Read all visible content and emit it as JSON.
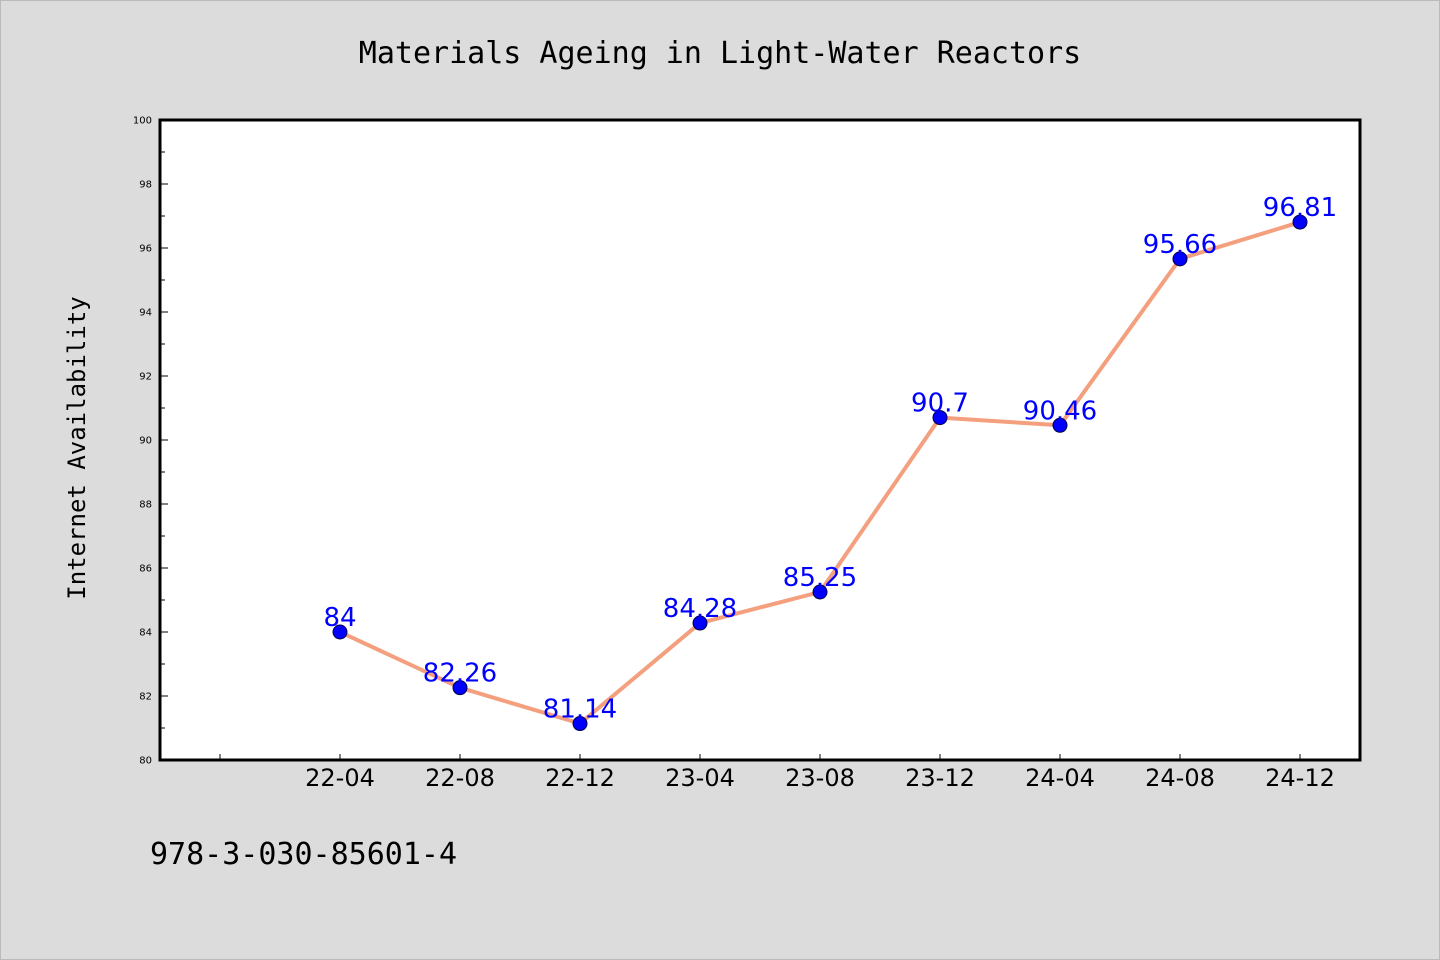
{
  "chart_data": {
    "type": "line",
    "title": "Materials Ageing in Light-Water Reactors",
    "xlabel": "",
    "ylabel": "Internet Availability",
    "categories": [
      "22-04",
      "22-08",
      "22-12",
      "23-04",
      "23-08",
      "23-12",
      "24-04",
      "24-08",
      "24-12"
    ],
    "series": [
      {
        "values": [
          84,
          82.26,
          81.14,
          84.28,
          85.25,
          90.7,
          90.46,
          95.66,
          96.81
        ],
        "labels": [
          "84",
          "82.26",
          "81.14",
          "84.28",
          "85.25",
          "90.7",
          "90.46",
          "95.66",
          "96.81"
        ]
      }
    ],
    "ylim": [
      80,
      100
    ],
    "yticks": [
      "80",
      "82",
      "84",
      "86",
      "88",
      "90",
      "92",
      "94",
      "96",
      "98",
      "100"
    ],
    "grid": false,
    "legend": "none",
    "colors": {
      "line": "#f4a07f",
      "marker": "#0000ff",
      "label": "#0000ff",
      "background": "#dcdcdc",
      "plot_background": "#ffffff"
    }
  },
  "footer": {
    "isbn": "978-3-030-85601-4"
  }
}
